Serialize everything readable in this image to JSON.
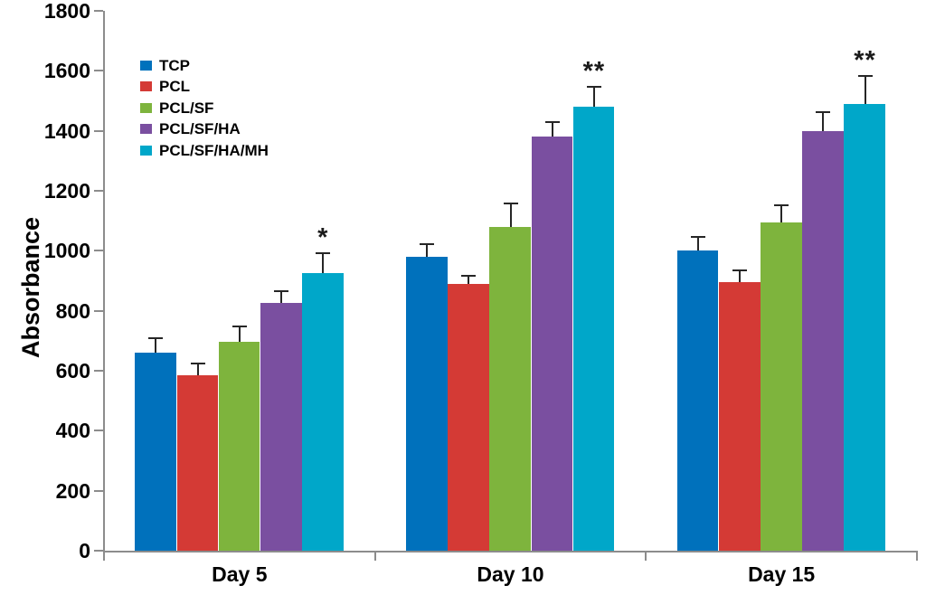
{
  "chart_data": {
    "type": "bar",
    "title": "",
    "xlabel": "",
    "ylabel": "Absorbance",
    "ylim": [
      0,
      1800
    ],
    "ytick_step": 200,
    "grid": false,
    "legend_position": "upper-left-inside",
    "categories": [
      "Day 5",
      "Day 10",
      "Day 15"
    ],
    "series": [
      {
        "name": "TCP",
        "color": "#0071BC",
        "values": [
          660,
          980,
          1000
        ],
        "errors": [
          50,
          43,
          45
        ]
      },
      {
        "name": "PCL",
        "color": "#D43A35",
        "values": [
          585,
          888,
          895
        ],
        "errors": [
          40,
          28,
          40
        ]
      },
      {
        "name": "PCL/SF",
        "color": "#7EB43D",
        "values": [
          695,
          1080,
          1095
        ],
        "errors": [
          52,
          78,
          58
        ]
      },
      {
        "name": "PCL/SF/HA",
        "color": "#7A4FA0",
        "values": [
          825,
          1380,
          1400
        ],
        "errors": [
          40,
          50,
          62
        ]
      },
      {
        "name": "PCL/SF/HA/MH",
        "color": "#00A7C9",
        "values": [
          925,
          1480,
          1490
        ],
        "errors": [
          66,
          67,
          92
        ]
      }
    ],
    "annotations": [
      {
        "category": "Day 5",
        "series": "PCL/SF/HA/MH",
        "text": "*"
      },
      {
        "category": "Day 10",
        "series": "PCL/SF/HA/MH",
        "text": "**"
      },
      {
        "category": "Day 15",
        "series": "PCL/SF/HA/MH",
        "text": "**"
      }
    ],
    "axis_color": "#8c8c8c",
    "error_bar_color": "#262626"
  }
}
